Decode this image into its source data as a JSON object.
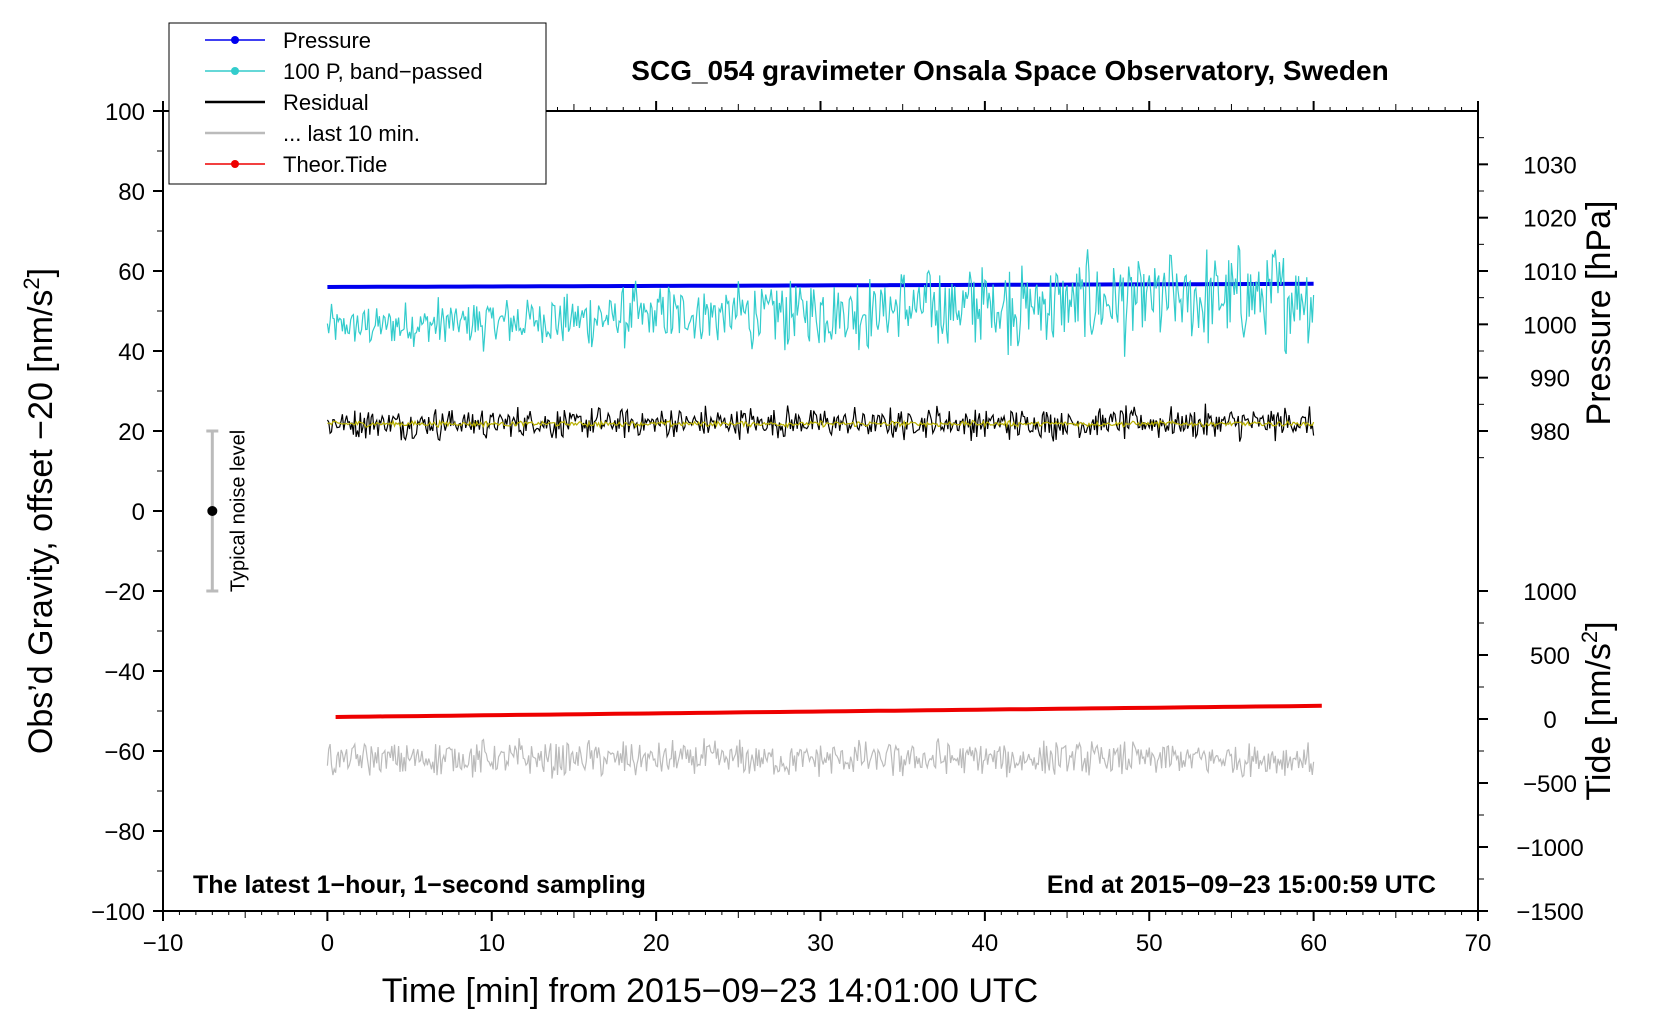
{
  "chart_data": {
    "type": "line",
    "title": "SCG_054 gravimeter Onsala Space Observatory, Sweden",
    "xlabel": "Time [min] from 2015−09−23 14:01:00 UTC",
    "ylabel_left_prefix": "Obs’d Gravity, offset −20 [nm/s",
    "ylabel_left_sup": "2",
    "ylabel_left_suffix": "]",
    "ylabel_right_pressure": "Pressure [hPa]",
    "ylabel_right_tide_prefix": "Tide [nm/s",
    "ylabel_right_tide_sup": "2",
    "ylabel_right_tide_suffix": "]",
    "xlim": [
      -10,
      70
    ],
    "ylim": [
      -100,
      100
    ],
    "pressure_axis": {
      "ticks": [
        980,
        990,
        1000,
        1010,
        1020,
        1030
      ],
      "maps_980_to": 20,
      "maps_1010_to": 60
    },
    "tide_axis": {
      "ticks": [
        -1500,
        -1000,
        -500,
        0,
        500,
        1000
      ],
      "maps_minus1500_to": -100,
      "maps_1000_to": -20
    },
    "x_ticks": [
      "−10",
      "0",
      "10",
      "20",
      "30",
      "40",
      "50",
      "60",
      "70"
    ],
    "x_tick_values": [
      -10,
      0,
      10,
      20,
      30,
      40,
      50,
      60,
      70
    ],
    "y_ticks": [
      "−100",
      "−80",
      "−60",
      "−40",
      "−20",
      "0",
      "20",
      "40",
      "60",
      "80",
      "100"
    ],
    "y_tick_values": [
      -100,
      -80,
      -60,
      -40,
      -20,
      0,
      20,
      40,
      60,
      80,
      100
    ],
    "pressure_tick_labels": [
      "980",
      "990",
      "1000",
      "1010",
      "1020",
      "1030"
    ],
    "tide_tick_labels": [
      "−1500",
      "−1000",
      "−500",
      "0",
      "500",
      "1000"
    ],
    "annotation_left": "The latest 1−hour, 1−second sampling",
    "annotation_right": "End at 2015−09−23 15:00:59 UTC",
    "noise_label": "Typical noise level",
    "noise_bar": {
      "x": -7,
      "center": 0,
      "low": -20,
      "high": 20
    },
    "legend": [
      {
        "label": "Pressure",
        "color": "#0000ee",
        "marker": true
      },
      {
        "label": "100 P, band−passed",
        "color": "#33cccc",
        "marker": true
      },
      {
        "label": "Residual",
        "color": "#000000",
        "marker": false
      },
      {
        "label": "... last 10 min.",
        "color": "#bbbbbb",
        "marker": false
      },
      {
        "label": "Theor.Tide",
        "color": "#ee0000",
        "marker": true
      }
    ],
    "series": [
      {
        "name": "Pressure",
        "color": "#0000ee",
        "x_range": [
          0,
          60
        ],
        "y_start": 56,
        "y_end": 56.8,
        "noise": 0
      },
      {
        "name": "100 P, band−passed",
        "color": "#33cccc",
        "x_range": [
          0,
          60
        ],
        "y_start": 46,
        "y_end": 54,
        "noise": 4.5,
        "noise_growth": 1.6
      },
      {
        "name": "Residual",
        "color": "#000000",
        "x_range": [
          0,
          60
        ],
        "y_start": 22,
        "y_end": 22,
        "noise": 3.5
      },
      {
        "name": "Residual smoothed",
        "color": "#b8b000",
        "x_range": [
          0,
          60
        ],
        "y_start": 21.8,
        "y_end": 21.8,
        "noise": 0.6
      },
      {
        "name": "... last 10 min.",
        "color": "#bbbbbb",
        "x_range": [
          0,
          60
        ],
        "y_start": -62,
        "y_end": -62,
        "noise": 4
      },
      {
        "name": "Theor.Tide",
        "color": "#ee0000",
        "x_range": [
          0.5,
          60.5
        ],
        "y_start": -51.5,
        "y_end": -48.7,
        "noise": 0
      }
    ]
  }
}
